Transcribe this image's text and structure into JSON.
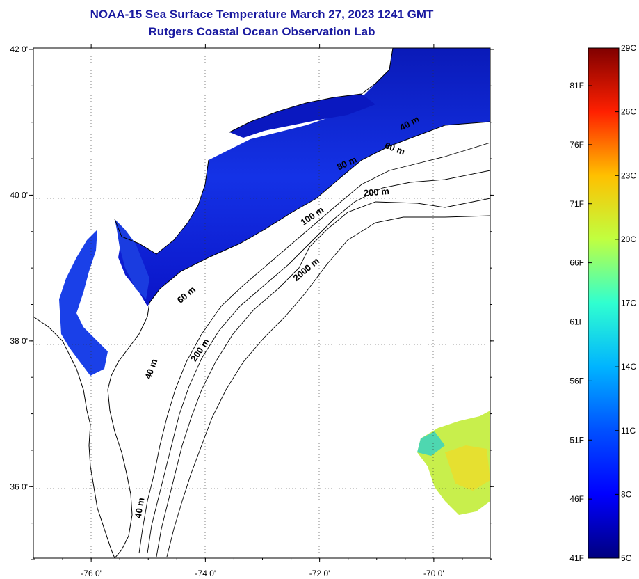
{
  "header": {
    "title_line1": "NOAA-15 Sea Surface Temperature March 27, 2023 1241 GMT",
    "title_line2": "Rutgers Coastal Ocean Observation Lab"
  },
  "map": {
    "lon_range": [
      -77,
      -69
    ],
    "lat_range": [
      35,
      42
    ],
    "lat_ticks": [
      {
        "value": 42,
        "label": "42 0'"
      },
      {
        "value": 40,
        "label": "40 0'"
      },
      {
        "value": 38,
        "label": "38 0'"
      },
      {
        "value": 36,
        "label": "36 0'"
      }
    ],
    "lon_ticks": [
      {
        "value": -76,
        "label": "-76 0'"
      },
      {
        "value": -74,
        "label": "-74 0'"
      },
      {
        "value": -72,
        "label": "-72 0'"
      },
      {
        "value": -70,
        "label": "-70 0'"
      }
    ],
    "grid": "dotted",
    "contour_labels": [
      {
        "text": "40 m",
        "lon": -70.4,
        "lat": 40.95,
        "angle": -30
      },
      {
        "text": "60 m",
        "lon": -70.7,
        "lat": 40.6,
        "angle": 20
      },
      {
        "text": "80 m",
        "lon": -71.5,
        "lat": 40.4,
        "angle": -25
      },
      {
        "text": "200 m",
        "lon": -71.0,
        "lat": 40.0,
        "angle": -5
      },
      {
        "text": "100 m",
        "lon": -72.1,
        "lat": 39.68,
        "angle": -35
      },
      {
        "text": "2000 m",
        "lon": -72.2,
        "lat": 38.95,
        "angle": -40
      },
      {
        "text": "60 m",
        "lon": -74.3,
        "lat": 38.6,
        "angle": -40
      },
      {
        "text": "200 m",
        "lon": -74.05,
        "lat": 37.85,
        "angle": -55
      },
      {
        "text": "40 m",
        "lon": -74.9,
        "lat": 37.6,
        "angle": -70
      },
      {
        "text": "40 m",
        "lon": -75.1,
        "lat": 35.7,
        "angle": -80
      }
    ],
    "colors": {
      "cold": "#0a14c8",
      "mid": "#1e3cff",
      "warm": "#c8f050"
    }
  },
  "colorbar": {
    "celsius_labels": [
      "29C",
      "26C",
      "23C",
      "20C",
      "17C",
      "14C",
      "11C",
      "8C",
      "5C"
    ],
    "fahrenheit_labels": [
      "81F",
      "76F",
      "71F",
      "66F",
      "61F",
      "56F",
      "51F",
      "46F",
      "41F"
    ],
    "celsius_range": [
      5,
      29
    ],
    "colors": [
      "#00007f",
      "#0000ff",
      "#007fff",
      "#00ffff",
      "#7fff7f",
      "#ffff00",
      "#ff7f00",
      "#ff0000",
      "#7f0000"
    ]
  }
}
